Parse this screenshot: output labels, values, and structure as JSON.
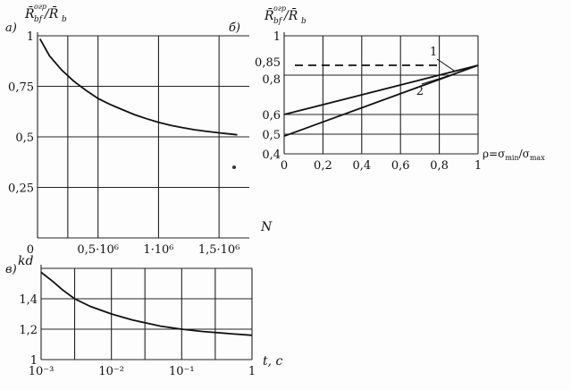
{
  "chart_data": [
    {
      "panel_label": "а)",
      "type": "line",
      "ylabel": {
        "main": "R̄",
        "sub": "bf",
        "sup": "огр",
        "rest": "/R̄",
        "rest_sub": "b"
      },
      "xlabel": "N",
      "xlim": [
        0,
        1750000
      ],
      "ylim": [
        0,
        1
      ],
      "x_ticks": [
        {
          "value": 0,
          "label": "0"
        },
        {
          "value": 500000,
          "label": "0,5·10⁶"
        },
        {
          "value": 1000000,
          "label": "1·10⁶"
        },
        {
          "value": 1500000,
          "label": "1,5·10⁶"
        }
      ],
      "y_ticks": [
        {
          "value": 0.25,
          "label": "0,25"
        },
        {
          "value": 0.5,
          "label": "0,5"
        },
        {
          "value": 0.75,
          "label": "0,75"
        },
        {
          "value": 1,
          "label": "1"
        }
      ],
      "grid": true,
      "series": [
        {
          "x": [
            20000,
            100000,
            200000,
            300000,
            400000,
            500000,
            600000,
            700000,
            800000,
            900000,
            1000000,
            1100000,
            1200000,
            1300000,
            1400000,
            1500000,
            1650000
          ],
          "y": [
            0.985,
            0.9,
            0.83,
            0.775,
            0.73,
            0.69,
            0.66,
            0.635,
            0.61,
            0.59,
            0.572,
            0.557,
            0.545,
            0.535,
            0.527,
            0.52,
            0.51
          ]
        }
      ]
    },
    {
      "panel_label": "б)",
      "type": "line",
      "ylabel": {
        "main": "R̄",
        "sub": "bf",
        "sup": "огр",
        "rest": "/R̄",
        "rest_sub": "b"
      },
      "xlabel": "ρ=σmin/σmax",
      "xlim": [
        0,
        1
      ],
      "ylim": [
        0.4,
        1
      ],
      "x_ticks": [
        {
          "value": 0,
          "label": "0"
        },
        {
          "value": 0.2,
          "label": "0,2"
        },
        {
          "value": 0.4,
          "label": "0,4"
        },
        {
          "value": 0.6,
          "label": "0,6"
        },
        {
          "value": 0.8,
          "label": "0,8"
        },
        {
          "value": 1,
          "label": "1"
        }
      ],
      "y_ticks": [
        {
          "value": 0.4,
          "label": "0,4"
        },
        {
          "value": 0.5,
          "label": "0,5"
        },
        {
          "value": 0.6,
          "label": "0,6"
        },
        {
          "value": 0.8,
          "label": "0,8"
        },
        {
          "value": 0.85,
          "label": "0,85"
        },
        {
          "value": 1,
          "label": "1"
        }
      ],
      "grid": true,
      "series": [
        {
          "name": "1",
          "x": [
            0,
            1
          ],
          "y": [
            0.6,
            0.85
          ]
        },
        {
          "name": "2",
          "x": [
            0,
            1
          ],
          "y": [
            0.49,
            0.85
          ]
        }
      ],
      "reference_line": {
        "y": 0.85,
        "x_range": [
          0,
          0.8
        ],
        "style": "dashed"
      }
    },
    {
      "panel_label": "в)",
      "type": "line",
      "ylabel": "kd",
      "xlabel": "t, c",
      "x_scale": "log",
      "xlim": [
        0.001,
        1
      ],
      "ylim": [
        1,
        1.6
      ],
      "x_ticks": [
        {
          "value": 0.001,
          "label": "10⁻³"
        },
        {
          "value": 0.01,
          "label": "10⁻²"
        },
        {
          "value": 0.1,
          "label": "10⁻¹"
        },
        {
          "value": 1,
          "label": "1"
        }
      ],
      "y_ticks": [
        {
          "value": 1,
          "label": "1"
        },
        {
          "value": 1.2,
          "label": "1,2"
        },
        {
          "value": 1.4,
          "label": "1,4"
        }
      ],
      "grid": true,
      "series": [
        {
          "x": [
            0.001,
            0.0015,
            0.002,
            0.003,
            0.005,
            0.01,
            0.02,
            0.05,
            0.1,
            0.2,
            0.5,
            1
          ],
          "y": [
            1.575,
            1.51,
            1.46,
            1.4,
            1.35,
            1.3,
            1.26,
            1.22,
            1.2,
            1.185,
            1.17,
            1.16
          ]
        }
      ]
    }
  ]
}
